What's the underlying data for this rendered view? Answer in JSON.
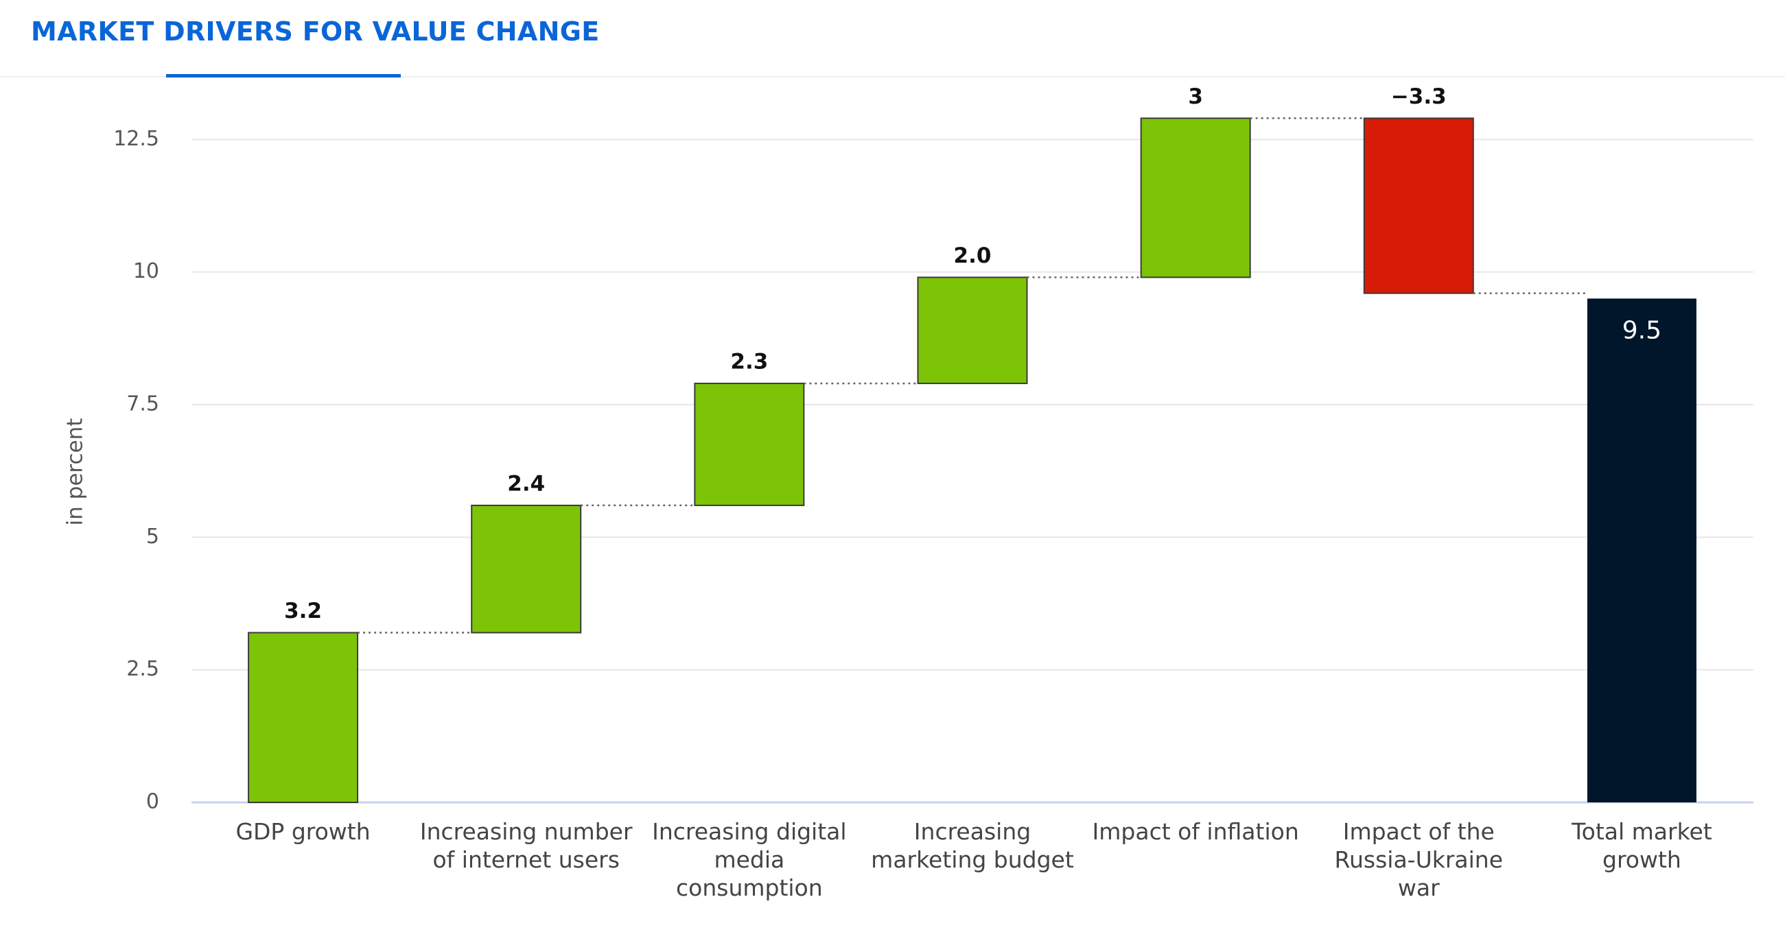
{
  "header": {
    "tab": "MARKET DRIVERS FOR VALUE CHANGE"
  },
  "chart_data": {
    "type": "waterfall",
    "y_label": "in percent",
    "categories": [
      "GDP growth",
      "Increasing number of internet users",
      "Increasing digital media consumption",
      "Increasing marketing budget",
      "Impact of inflation",
      "Impact of the Russia-Ukraine war",
      "Total market growth"
    ],
    "values": [
      3.2,
      2.4,
      2.3,
      2.0,
      3,
      -3.3,
      9.5
    ],
    "value_labels": [
      "3.2",
      "2.4",
      "2.3",
      "2.0",
      "3",
      "−3.3",
      "9.5"
    ],
    "is_total": [
      false,
      false,
      false,
      false,
      false,
      false,
      true
    ],
    "colors": [
      "#7dc407",
      "#7dc407",
      "#7dc407",
      "#7dc407",
      "#7dc407",
      "#d81b06",
      "#01152b"
    ],
    "ylim": [
      0,
      13.5
    ],
    "yticks": [
      0,
      2.5,
      5,
      7.5,
      10,
      12.5
    ],
    "grid": true
  }
}
